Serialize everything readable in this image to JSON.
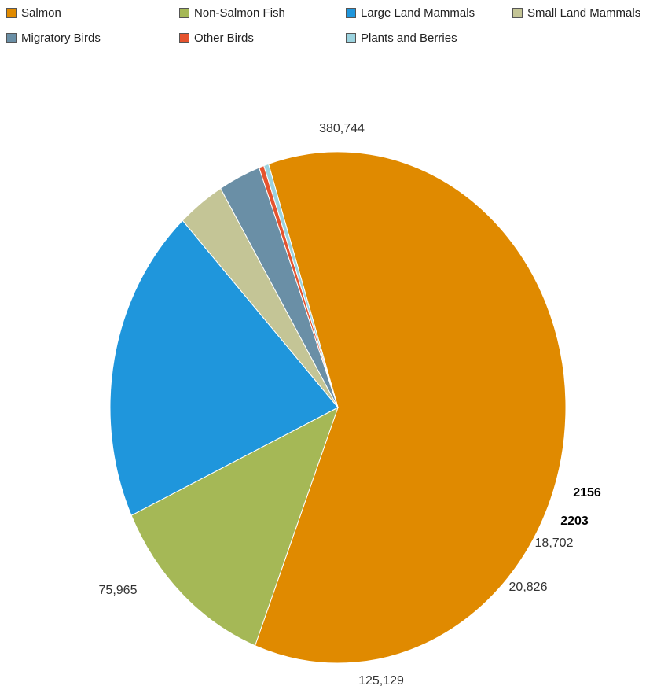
{
  "chart_data": {
    "type": "pie",
    "legend_placement": "top",
    "slices": [
      {
        "name": "Salmon",
        "value": 380744,
        "label": "380,744",
        "color": "#e08a00"
      },
      {
        "name": "Non-Salmon Fish",
        "value": 75965,
        "label": "75,965",
        "color": "#a5b856"
      },
      {
        "name": "Large Land Mammals",
        "value": 125129,
        "label": "125,129",
        "color": "#1f96dc"
      },
      {
        "name": "Small Land Mammals",
        "value": 20826,
        "label": "20,826",
        "color": "#c4c596"
      },
      {
        "name": "Migratory Birds",
        "value": 18702,
        "label": "18,702",
        "color": "#6a8fa6"
      },
      {
        "name": "Other Birds",
        "value": 2203,
        "label": "2203",
        "color": "#e5532e"
      },
      {
        "name": "Plants and Berries",
        "value": 2156,
        "label": "2156",
        "color": "#9bd3df"
      }
    ]
  }
}
